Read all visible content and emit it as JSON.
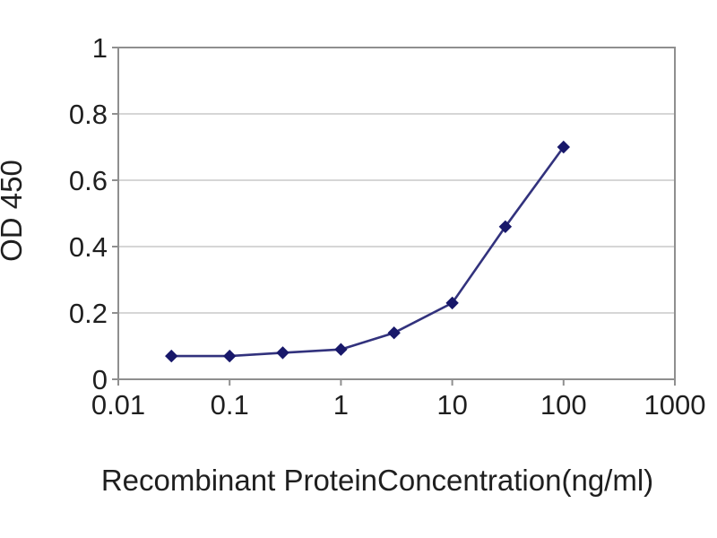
{
  "page": {
    "background": "#ffffff",
    "figure_kind": "ELISA standard curve"
  },
  "chart_data": {
    "type": "line",
    "title": "",
    "xlabel": "Recombinant ProteinConcentration(ng/ml)",
    "ylabel": "OD 450",
    "x_scale": "log",
    "xlim": [
      0.01,
      1000
    ],
    "ylim": [
      0,
      1
    ],
    "x_ticks": [
      0.01,
      0.1,
      1,
      10,
      100,
      1000
    ],
    "x_tick_labels": [
      "0.01",
      "0.1",
      "1",
      "10",
      "100",
      "1000"
    ],
    "y_ticks": [
      0,
      0.2,
      0.4,
      0.6,
      0.8,
      1
    ],
    "y_tick_labels": [
      "0",
      "0.2",
      "0.4",
      "0.6",
      "0.8",
      "1"
    ],
    "grid": "horizontal-only",
    "legend": "none",
    "series": [
      {
        "name": "OD 450",
        "x": [
          0.03,
          0.1,
          0.3,
          1,
          3,
          10,
          30,
          100
        ],
        "y": [
          0.07,
          0.07,
          0.08,
          0.09,
          0.14,
          0.23,
          0.46,
          0.7
        ],
        "marker": "diamond",
        "line_color": "#32327d",
        "marker_color": "#18186a"
      }
    ],
    "colors": {
      "plot_border": "#8f8f8f",
      "gridline": "#c8c8c8",
      "tick": "#8f8f8f",
      "text": "#1f1f1f",
      "plot_background": "#ffffff"
    }
  }
}
